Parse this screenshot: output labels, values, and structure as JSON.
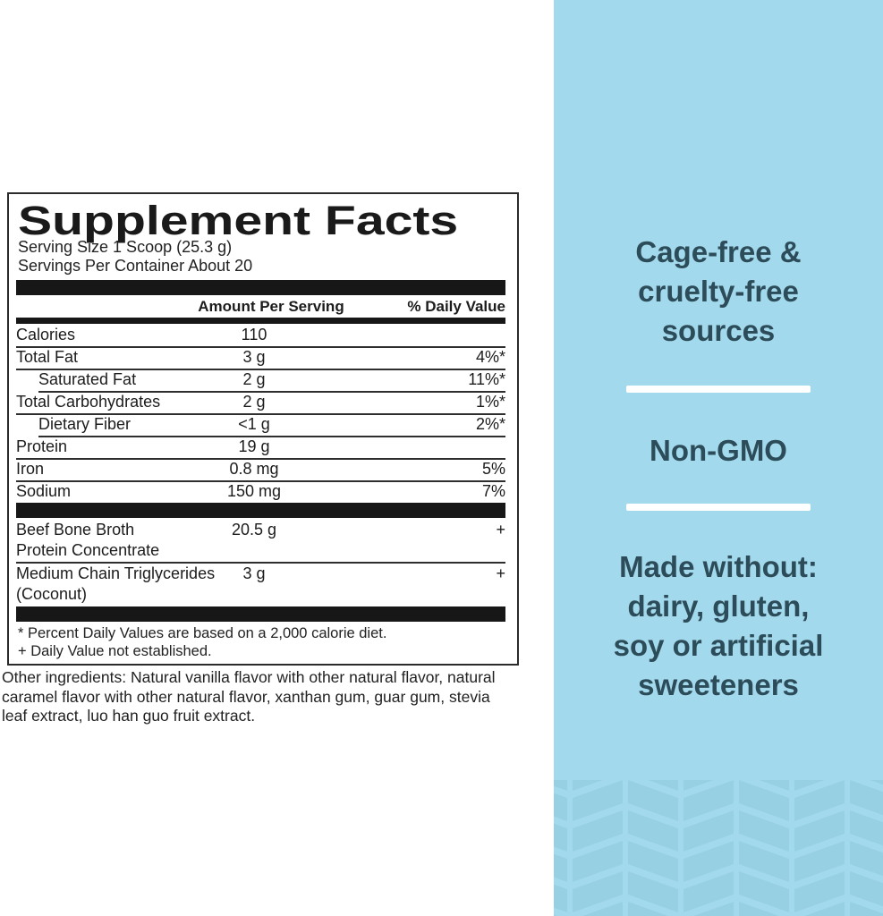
{
  "label": {
    "title": "Supplement Facts",
    "serving_size": "Serving Size 1 Scoop (25.3 g)",
    "servings_per_container": "Servings Per Container About 20",
    "columns": {
      "amount": "Amount Per Serving",
      "dv": "% Daily Value"
    },
    "nutrients": [
      {
        "name": "Calories",
        "amount": "110",
        "dv": "",
        "indent": false,
        "rule": "none"
      },
      {
        "name": "Total Fat",
        "amount": "3 g",
        "dv": "4%*",
        "indent": false,
        "rule": "full"
      },
      {
        "name": "Saturated Fat",
        "amount": "2 g",
        "dv": "11%*",
        "indent": true,
        "rule": "full"
      },
      {
        "name": "Total Carbohydrates",
        "amount": "2 g",
        "dv": "1%*",
        "indent": false,
        "rule": "indent"
      },
      {
        "name": "Dietary Fiber",
        "amount": "<1 g",
        "dv": "2%*",
        "indent": true,
        "rule": "full"
      },
      {
        "name": "Protein",
        "amount": "19 g",
        "dv": "",
        "indent": false,
        "rule": "indent"
      },
      {
        "name": "Iron",
        "amount": "0.8 mg",
        "dv": "5%",
        "indent": false,
        "rule": "full"
      },
      {
        "name": "Sodium",
        "amount": "150 mg",
        "dv": "7%",
        "indent": false,
        "rule": "full"
      }
    ],
    "supplements": [
      {
        "name": "Beef Bone Broth",
        "name2": "Protein Concentrate",
        "amount": "20.5 g",
        "dv": "+",
        "rule": "none"
      },
      {
        "name": "Medium Chain Triglycerides",
        "name2": "(Coconut)",
        "amount": "3 g",
        "dv": "+",
        "rule": "full"
      }
    ],
    "footnotes": [
      "* Percent Daily Values are based on a 2,000 calorie diet.",
      "+ Daily Value not established."
    ],
    "other_ingredients": "Other ingredients: Natural vanilla flavor with other natural flavor, natural\ncaramel flavor with other natural flavor, xanthan gum, guar gum, stevia\nleaf extract, luo han guo fruit extract."
  },
  "side_panel": {
    "claims": {
      "claim1": "Cage-free &\ncruelty-free\nsources",
      "claim2": "Non-GMO",
      "claim3": "Made without:\ndairy, gluten,\nsoy or artificial\nsweeteners"
    },
    "colors": {
      "background": "#a3d9ec",
      "text": "#2d4c59",
      "divider": "#ffffff",
      "chevron": "#97d0e3"
    }
  }
}
